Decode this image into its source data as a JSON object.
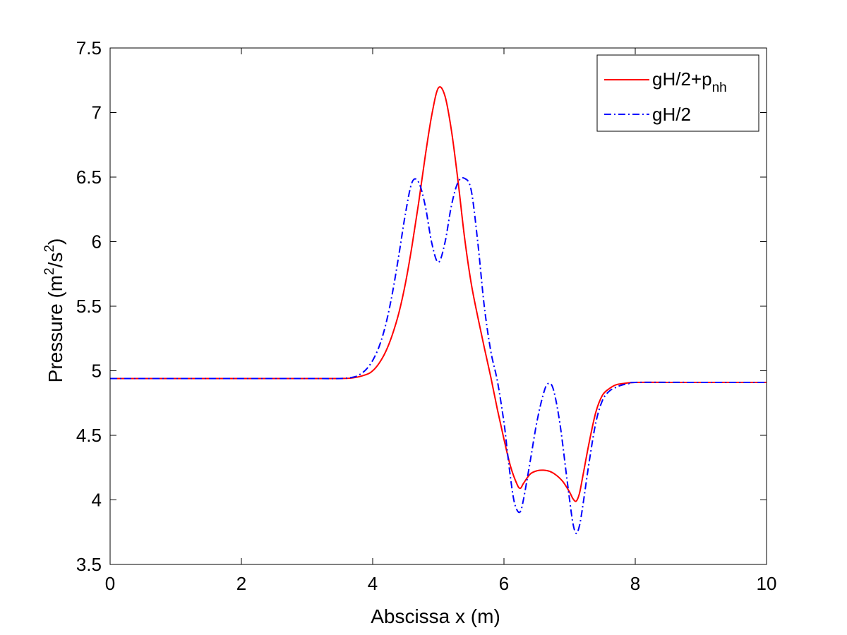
{
  "chart_data": {
    "type": "line",
    "title": "",
    "xlabel": "Abscissa x (m)",
    "ylabel_parts": {
      "base": "Pressure (m",
      "sup1": "2",
      "mid": "/s",
      "sup2": "2",
      "end": ")"
    },
    "xlim": [
      0,
      10
    ],
    "ylim": [
      3.5,
      7.5
    ],
    "xticks": [
      "0",
      "2",
      "4",
      "6",
      "8",
      "10"
    ],
    "yticks": [
      "3.5",
      "4",
      "4.5",
      "5",
      "5.5",
      "6",
      "6.5",
      "7",
      "7.5"
    ],
    "grid": false,
    "legend_position": "top-right",
    "series": [
      {
        "name": "gH/2+p_nh",
        "legend": {
          "base": "gH/2+p",
          "sub": "nh"
        },
        "color": "#ff0000",
        "style": "solid",
        "x": [
          0,
          1,
          2,
          3,
          3.5,
          3.7,
          3.9,
          4.0,
          4.1,
          4.2,
          4.3,
          4.4,
          4.5,
          4.6,
          4.7,
          4.8,
          4.9,
          5.0,
          5.1,
          5.2,
          5.3,
          5.4,
          5.5,
          5.6,
          5.7,
          5.8,
          5.9,
          6.0,
          6.1,
          6.2,
          6.25,
          6.3,
          6.4,
          6.5,
          6.6,
          6.7,
          6.8,
          6.9,
          7.0,
          7.05,
          7.1,
          7.15,
          7.2,
          7.3,
          7.4,
          7.5,
          7.6,
          7.7,
          7.8,
          8.0,
          8.5,
          9,
          10
        ],
        "y": [
          4.94,
          4.94,
          4.94,
          4.94,
          4.94,
          4.945,
          4.97,
          5.0,
          5.06,
          5.15,
          5.28,
          5.45,
          5.68,
          5.97,
          6.3,
          6.66,
          6.98,
          7.19,
          7.13,
          6.86,
          6.47,
          6.03,
          5.68,
          5.42,
          5.18,
          4.95,
          4.7,
          4.47,
          4.26,
          4.12,
          4.09,
          4.13,
          4.2,
          4.225,
          4.23,
          4.22,
          4.19,
          4.14,
          4.06,
          4.01,
          3.99,
          4.05,
          4.18,
          4.45,
          4.68,
          4.81,
          4.86,
          4.89,
          4.9,
          4.91,
          4.91,
          4.91,
          4.91
        ]
      },
      {
        "name": "gH/2",
        "legend": {
          "base": "gH/2",
          "sub": ""
        },
        "color": "#0000ff",
        "style": "dashdot",
        "x": [
          0,
          1,
          2,
          3,
          3.5,
          3.7,
          3.8,
          3.9,
          4.0,
          4.1,
          4.2,
          4.3,
          4.4,
          4.5,
          4.6,
          4.7,
          4.8,
          4.9,
          5.0,
          5.1,
          5.2,
          5.3,
          5.4,
          5.5,
          5.6,
          5.7,
          5.8,
          5.9,
          6.0,
          6.05,
          6.1,
          6.15,
          6.2,
          6.25,
          6.3,
          6.4,
          6.5,
          6.6,
          6.67,
          6.75,
          6.85,
          6.95,
          7.0,
          7.05,
          7.1,
          7.15,
          7.2,
          7.3,
          7.4,
          7.5,
          7.6,
          7.7,
          7.8,
          7.9,
          8.0,
          9,
          10
        ],
        "y": [
          4.94,
          4.94,
          4.94,
          4.94,
          4.94,
          4.95,
          4.97,
          5.01,
          5.08,
          5.19,
          5.36,
          5.6,
          5.9,
          6.22,
          6.46,
          6.46,
          6.28,
          5.99,
          5.84,
          5.99,
          6.28,
          6.46,
          6.49,
          6.4,
          6.0,
          5.5,
          5.15,
          4.92,
          4.6,
          4.38,
          4.17,
          4.0,
          3.92,
          3.91,
          4.01,
          4.3,
          4.6,
          4.82,
          4.9,
          4.86,
          4.6,
          4.2,
          4.0,
          3.82,
          3.74,
          3.8,
          3.95,
          4.3,
          4.6,
          4.77,
          4.84,
          4.87,
          4.89,
          4.9,
          4.91,
          4.91,
          4.91
        ]
      }
    ]
  }
}
